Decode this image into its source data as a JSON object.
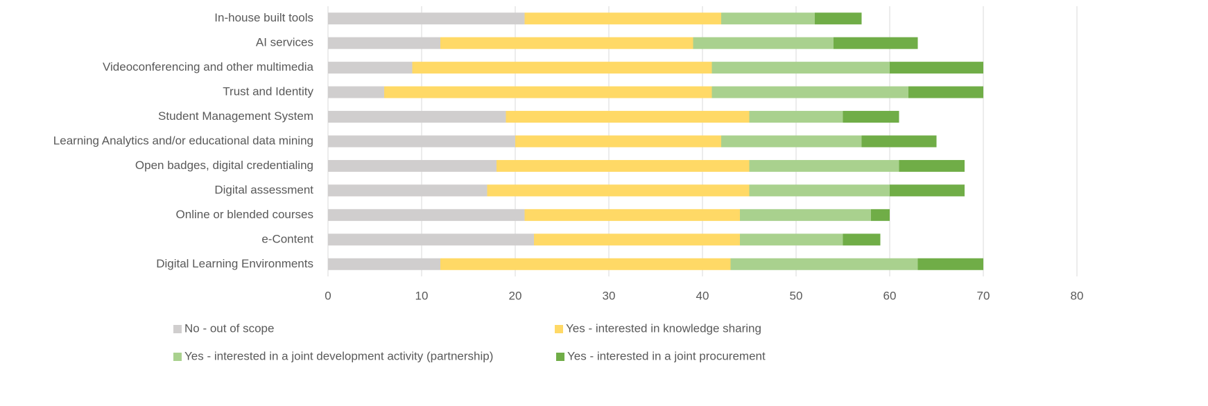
{
  "chart_data": {
    "type": "stacked_bar_horizontal",
    "categories": [
      "In-house built tools",
      "AI services",
      "Videoconferencing and other multimedia",
      "Trust and Identity",
      "Student Management System",
      "Learning Analytics and/or educational data mining",
      "Open badges, digital credentialing",
      "Digital assessment",
      "Online or blended courses",
      "e-Content",
      "Digital Learning Environments"
    ],
    "series": [
      {
        "name": "No - out of scope",
        "color": "#d0cece",
        "values": [
          21,
          12,
          9,
          6,
          19,
          20,
          18,
          17,
          21,
          22,
          12
        ]
      },
      {
        "name": "Yes - interested in knowledge sharing",
        "color": "#ffd966",
        "values": [
          21,
          27,
          32,
          35,
          26,
          22,
          27,
          28,
          23,
          22,
          31
        ]
      },
      {
        "name": "Yes - interested in a joint development activity (partnership)",
        "color": "#a9d18e",
        "values": [
          10,
          15,
          19,
          21,
          10,
          15,
          16,
          15,
          14,
          11,
          20
        ]
      },
      {
        "name": "Yes - interested in a joint procurement",
        "color": "#70ad47",
        "values": [
          5,
          9,
          10,
          8,
          6,
          8,
          7,
          8,
          2,
          4,
          7
        ]
      }
    ],
    "xlim": [
      0,
      80
    ],
    "xticks": [
      0,
      10,
      20,
      30,
      40,
      50,
      60,
      70,
      80
    ],
    "grid": true,
    "legend": "bottom"
  }
}
